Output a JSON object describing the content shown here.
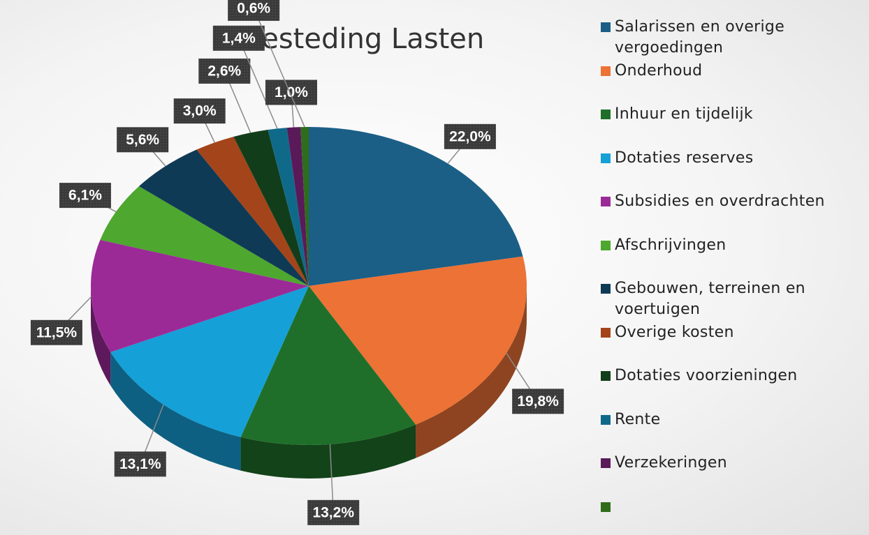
{
  "chart_data": {
    "type": "pie",
    "title": "Besteding Lasten",
    "categories": [
      "Salarissen en overige vergoedingen",
      "Onderhoud",
      "Inhuur en tijdelijk",
      "Dotaties reserves",
      "Subsidies en overdrachten",
      "Afschrijvingen",
      "Gebouwen, terreinen en voertuigen",
      "Overige kosten",
      "Dotaties voorzieningen",
      "Rente",
      "Verzekeringen",
      null
    ],
    "values": [
      22.0,
      19.8,
      13.2,
      13.1,
      11.5,
      6.1,
      5.6,
      3.0,
      2.6,
      1.4,
      1.0,
      0.6
    ],
    "value_labels": [
      "22,0%",
      "19,8%",
      "13,2%",
      "13,1%",
      "11,5%",
      "6,1%",
      "5,6%",
      "3,0%",
      "2,6%",
      "1,4%",
      "1,0%",
      "0,6%"
    ],
    "colors": [
      "#1b5f86",
      "#ec7235",
      "#1f6f2a",
      "#15a0d8",
      "#9b2a97",
      "#4ea72e",
      "#0f3a55",
      "#a4441a",
      "#123d1a",
      "#0f6a8a",
      "#5a1a5a",
      "#2f6d1c"
    ],
    "legend": "right"
  }
}
